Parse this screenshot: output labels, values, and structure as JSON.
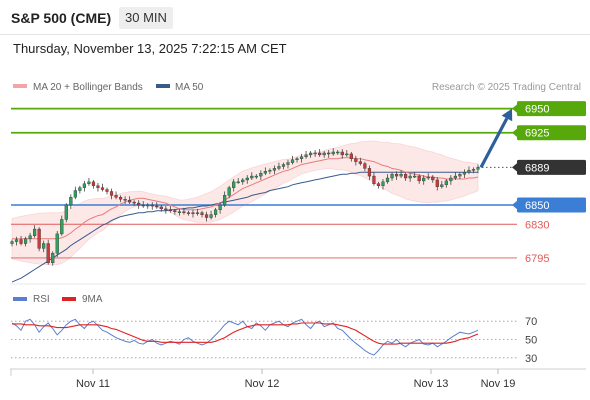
{
  "header": {
    "instrument": "S&P 500 (CME)",
    "timeframe": "30 MIN",
    "datetime": "Thursday, November 13, 2025 7:22:15 AM CET"
  },
  "legend": {
    "ma20": "MA 20 + Bollinger Bands",
    "ma50": "MA 50",
    "rsi": "RSI",
    "ma9": "9MA"
  },
  "copyright": "Research © 2025 Trading Central",
  "colors": {
    "resistance": "#57a90b",
    "support": "#3a7fd5",
    "pivot_minor": "#e05a5a",
    "last": "#333333",
    "arrow": "#2d5f9a",
    "bull": "#31a15e",
    "bear": "#cc3b3b",
    "ma20": "#e87c7c",
    "ma50": "#3a5a8c",
    "rsi": "#5b7fd0",
    "ma9": "#e02222"
  },
  "chart_data": [
    {
      "type": "candlestick",
      "x_labels": [
        "Nov 11",
        "Nov 12",
        "Nov 13",
        "Nov 19"
      ],
      "ylim": [
        6768,
        6960
      ],
      "levels": [
        {
          "value": 6950,
          "label": "6950",
          "kind": "resistance"
        },
        {
          "value": 6925,
          "label": "6925",
          "kind": "resistance"
        },
        {
          "value": 6889,
          "label": "6889",
          "kind": "last"
        },
        {
          "value": 6850,
          "label": "6850",
          "kind": "support"
        },
        {
          "value": 6830,
          "label": "6830",
          "kind": "pivot_minor"
        },
        {
          "value": 6795,
          "label": "6795",
          "kind": "pivot_minor"
        }
      ],
      "close": [
        6812,
        6814,
        6810,
        6815,
        6818,
        6825,
        6805,
        6810,
        6790,
        6800,
        6820,
        6835,
        6850,
        6858,
        6865,
        6868,
        6872,
        6874,
        6870,
        6868,
        6866,
        6864,
        6860,
        6858,
        6856,
        6855,
        6853,
        6852,
        6850,
        6849,
        6850,
        6849,
        6848,
        6846,
        6845,
        6844,
        6843,
        6843,
        6842,
        6842,
        6841,
        6842,
        6840,
        6837,
        6840,
        6845,
        6850,
        6860,
        6868,
        6874,
        6874,
        6876,
        6878,
        6880,
        6880,
        6883,
        6885,
        6886,
        6888,
        6890,
        6892,
        6894,
        6897,
        6898,
        6900,
        6902,
        6904,
        6904,
        6902,
        6904,
        6903,
        6905,
        6905,
        6902,
        6903,
        6898,
        6895,
        6893,
        6888,
        6880,
        6872,
        6870,
        6874,
        6878,
        6882,
        6880,
        6882,
        6878,
        6880,
        6880,
        6875,
        6878,
        6879,
        6876,
        6869,
        6871,
        6875,
        6878,
        6880,
        6882,
        6884,
        6886,
        6887,
        6889
      ],
      "series": [
        {
          "name": "MA 20",
          "values": [
            6815,
            6815,
            6815,
            6815,
            6815,
            6815,
            6815,
            6815,
            6815,
            6815,
            6815,
            6816,
            6818,
            6821,
            6825,
            6828,
            6832,
            6835,
            6837,
            6839,
            6840,
            6843,
            6846,
            6848,
            6851,
            6853,
            6855,
            6856,
            6857,
            6857,
            6856,
            6855,
            6854,
            6853,
            6852,
            6850,
            6848,
            6846,
            6845,
            6845,
            6845,
            6845,
            6846,
            6847,
            6848,
            6850,
            6852,
            6855,
            6858,
            6861,
            6864,
            6867,
            6869,
            6871,
            6873,
            6875,
            6877,
            6879,
            6881,
            6883,
            6885,
            6886,
            6888,
            6890,
            6892,
            6893,
            6894,
            6895,
            6896,
            6897,
            6898,
            6898,
            6898,
            6899,
            6899,
            6899,
            6898,
            6898,
            6897,
            6896,
            6895,
            6893,
            6891,
            6890,
            6888,
            6887,
            6886,
            6884,
            6883,
            6882,
            6881,
            6880,
            6879,
            6879,
            6878,
            6878,
            6877,
            6877,
            6877,
            6877,
            6877,
            6878,
            6878,
            6879
          ]
        },
        {
          "name": "MA 50",
          "values": [
            6770,
            6772,
            6774,
            6777,
            6780,
            6783,
            6786,
            6789,
            6792,
            6795,
            6798,
            6801,
            6804,
            6808,
            6811,
            6814,
            6817,
            6820,
            6823,
            6826,
            6829,
            6831,
            6834,
            6836,
            6838,
            6839,
            6840,
            6841,
            6842,
            6842,
            6843,
            6843,
            6844,
            6844,
            6844,
            6845,
            6845,
            6846,
            6846,
            6847,
            6847,
            6848,
            6849,
            6849,
            6850,
            6851,
            6852,
            6853,
            6854,
            6855,
            6856,
            6857,
            6858,
            6860,
            6861,
            6862,
            6863,
            6865,
            6866,
            6867,
            6868,
            6869,
            6871,
            6872,
            6873,
            6874,
            6875,
            6876,
            6877,
            6878,
            6879,
            6880,
            6881,
            6882,
            6882,
            6883,
            6883,
            6884,
            6884,
            6884,
            6884,
            6884,
            6884,
            6884,
            6884,
            6884,
            6884,
            6884,
            6884,
            6884,
            6884,
            6884,
            6884,
            6884,
            6884,
            6884,
            6884,
            6884,
            6884,
            6884,
            6884,
            6884,
            6884,
            6884
          ]
        }
      ]
    },
    {
      "type": "line",
      "title": "RSI",
      "yticks": [
        70,
        50,
        30
      ],
      "ylim": [
        20,
        80
      ],
      "series": [
        {
          "name": "RSI",
          "values": [
            68,
            65,
            60,
            70,
            72,
            66,
            58,
            64,
            68,
            62,
            55,
            60,
            66,
            70,
            72,
            66,
            62,
            68,
            70,
            65,
            60,
            58,
            55,
            52,
            50,
            48,
            47,
            49,
            46,
            45,
            48,
            50,
            46,
            44,
            46,
            48,
            47,
            45,
            50,
            52,
            48,
            46,
            44,
            46,
            50,
            55,
            60,
            66,
            70,
            68,
            66,
            70,
            64,
            62,
            68,
            65,
            60,
            66,
            68,
            70,
            66,
            64,
            68,
            70,
            72,
            66,
            62,
            68,
            70,
            64,
            66,
            68,
            62,
            60,
            55,
            50,
            46,
            42,
            38,
            35,
            33,
            38,
            44,
            48,
            46,
            50,
            45,
            42,
            46,
            48,
            50,
            45,
            44,
            46,
            42,
            45,
            48,
            52,
            55,
            58,
            57,
            56,
            58,
            60
          ]
        },
        {
          "name": "9MA",
          "values": [
            67,
            67,
            67,
            66,
            66,
            66,
            65,
            65,
            65,
            64,
            63,
            63,
            63,
            64,
            65,
            66,
            66,
            66,
            66,
            66,
            65,
            64,
            62,
            61,
            59,
            57,
            55,
            53,
            51,
            49,
            48,
            48,
            48,
            47,
            47,
            47,
            47,
            47,
            47,
            47,
            47,
            47,
            47,
            47,
            47,
            48,
            50,
            52,
            55,
            58,
            60,
            62,
            64,
            65,
            66,
            66,
            66,
            66,
            66,
            66,
            66,
            66,
            67,
            67,
            68,
            68,
            68,
            68,
            68,
            67,
            67,
            67,
            66,
            65,
            64,
            62,
            60,
            57,
            54,
            51,
            48,
            46,
            45,
            45,
            45,
            45,
            46,
            46,
            46,
            46,
            46,
            46,
            46,
            46,
            46,
            46,
            46,
            47,
            48,
            50,
            51,
            52,
            54,
            56
          ]
        }
      ]
    }
  ]
}
